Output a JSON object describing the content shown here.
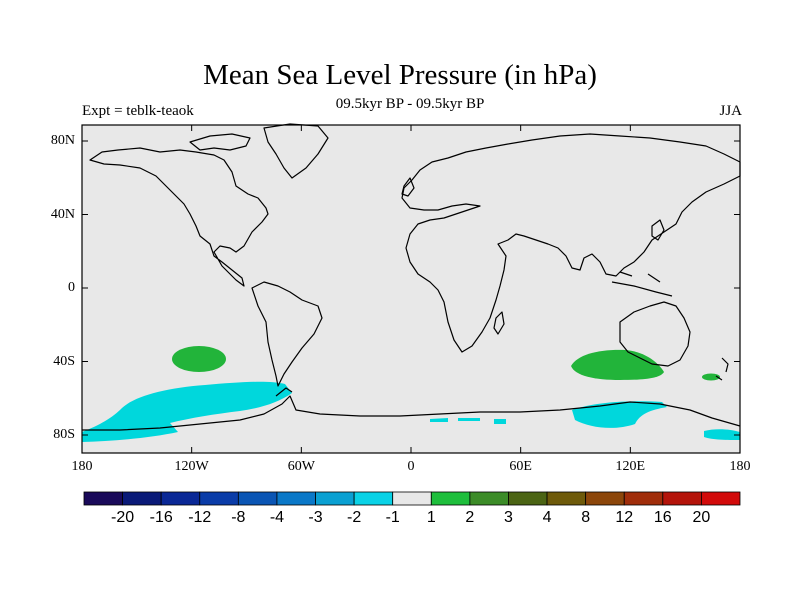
{
  "header": {
    "title": "Mean Sea Level Pressure (in hPa)",
    "subtitle": "09.5kyr BP - 09.5kyr BP",
    "expt": "Expt = teblk-teaok",
    "season": "JJA"
  },
  "axes": {
    "lat_ticks": [
      "80N",
      "40N",
      "0",
      "40S",
      "80S"
    ],
    "lon_ticks": [
      "180",
      "120W",
      "60W",
      "0",
      "60E",
      "120E",
      "180"
    ]
  },
  "colorbar": {
    "colors": [
      "#1a0a5a",
      "#0a1a78",
      "#0a2896",
      "#0a3ca8",
      "#0a55b4",
      "#0a78c8",
      "#0aa0d2",
      "#0ad2e6",
      "#e8e8e8",
      "#1ebe3c",
      "#3c8c28",
      "#4b6414",
      "#6e5a0a",
      "#8c460a",
      "#a02d0a",
      "#b4140a",
      "#d20a0a"
    ],
    "labels": [
      "-20",
      "-16",
      "-12",
      "-8",
      "-4",
      "-3",
      "-2",
      "-1",
      "1",
      "2",
      "3",
      "4",
      "8",
      "12",
      "16",
      "20"
    ]
  },
  "colors": {
    "land_background": "#e8e8e8",
    "negative_anomaly": "#00d7dc",
    "positive_anomaly": "#22b43a"
  }
}
